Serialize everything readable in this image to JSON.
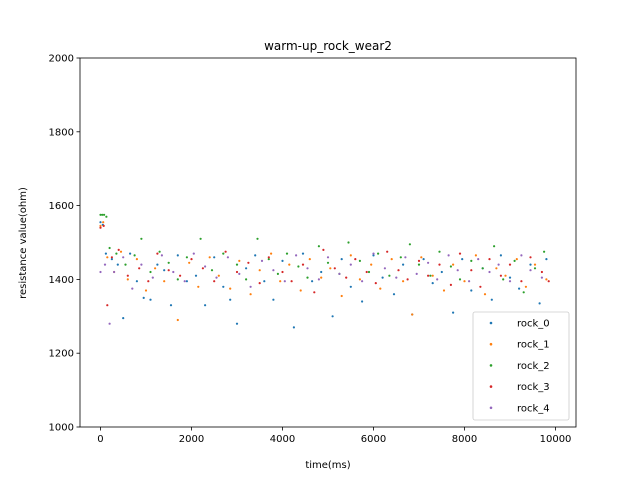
{
  "chart_data": {
    "type": "scatter",
    "title": "warm-up_rock_wear2",
    "xlabel": "time(ms)",
    "ylabel": "resistance value(ohm)",
    "xlim": [
      -450,
      10450
    ],
    "ylim": [
      1000,
      2000
    ],
    "xticks": [
      0,
      2000,
      4000,
      6000,
      8000,
      10000
    ],
    "yticks": [
      1000,
      1200,
      1400,
      1600,
      1800,
      2000
    ],
    "legend_position": "lower-right",
    "grid": false,
    "series": [
      {
        "name": "rock_0",
        "color": "#1f77b4",
        "points": [
          [
            0,
            1555
          ],
          [
            50,
            1548
          ],
          [
            120,
            1470
          ],
          [
            250,
            1455
          ],
          [
            380,
            1440
          ],
          [
            500,
            1295
          ],
          [
            650,
            1470
          ],
          [
            800,
            1395
          ],
          [
            950,
            1350
          ],
          [
            1100,
            1345
          ],
          [
            1250,
            1440
          ],
          [
            1400,
            1425
          ],
          [
            1550,
            1330
          ],
          [
            1700,
            1465
          ],
          [
            1900,
            1395
          ],
          [
            2100,
            1410
          ],
          [
            2300,
            1330
          ],
          [
            2500,
            1460
          ],
          [
            2700,
            1380
          ],
          [
            2850,
            1345
          ],
          [
            3000,
            1280
          ],
          [
            3200,
            1430
          ],
          [
            3400,
            1465
          ],
          [
            3600,
            1395
          ],
          [
            3800,
            1345
          ],
          [
            4000,
            1450
          ],
          [
            4250,
            1270
          ],
          [
            4450,
            1470
          ],
          [
            4650,
            1395
          ],
          [
            4850,
            1420
          ],
          [
            5100,
            1300
          ],
          [
            5300,
            1455
          ],
          [
            5500,
            1380
          ],
          [
            5750,
            1340
          ],
          [
            6000,
            1465
          ],
          [
            6200,
            1405
          ],
          [
            6450,
            1360
          ],
          [
            6650,
            1440
          ],
          [
            6850,
            1305
          ],
          [
            7100,
            1455
          ],
          [
            7300,
            1390
          ],
          [
            7500,
            1420
          ],
          [
            7750,
            1310
          ],
          [
            7950,
            1455
          ],
          [
            8150,
            1370
          ],
          [
            8400,
            1430
          ],
          [
            8600,
            1345
          ],
          [
            8800,
            1465
          ],
          [
            9000,
            1405
          ],
          [
            9200,
            1375
          ],
          [
            9450,
            1440
          ],
          [
            9650,
            1335
          ],
          [
            9800,
            1455
          ]
        ]
      },
      {
        "name": "rock_1",
        "color": "#ff7f0e",
        "points": [
          [
            0,
            1545
          ],
          [
            60,
            1555
          ],
          [
            150,
            1460
          ],
          [
            300,
            1420
          ],
          [
            450,
            1475
          ],
          [
            600,
            1400
          ],
          [
            800,
            1455
          ],
          [
            1000,
            1370
          ],
          [
            1200,
            1430
          ],
          [
            1400,
            1395
          ],
          [
            1700,
            1290
          ],
          [
            1950,
            1445
          ],
          [
            2150,
            1380
          ],
          [
            2400,
            1460
          ],
          [
            2600,
            1410
          ],
          [
            2850,
            1375
          ],
          [
            3050,
            1450
          ],
          [
            3300,
            1360
          ],
          [
            3500,
            1425
          ],
          [
            3750,
            1470
          ],
          [
            3950,
            1395
          ],
          [
            4150,
            1440
          ],
          [
            4400,
            1370
          ],
          [
            4600,
            1455
          ],
          [
            4850,
            1405
          ],
          [
            5050,
            1430
          ],
          [
            5300,
            1355
          ],
          [
            5500,
            1465
          ],
          [
            5700,
            1400
          ],
          [
            5950,
            1440
          ],
          [
            6150,
            1375
          ],
          [
            6400,
            1455
          ],
          [
            6650,
            1395
          ],
          [
            6850,
            1305
          ],
          [
            7050,
            1460
          ],
          [
            7300,
            1410
          ],
          [
            7550,
            1370
          ],
          [
            7750,
            1440
          ],
          [
            8000,
            1395
          ],
          [
            8250,
            1465
          ],
          [
            8450,
            1360
          ],
          [
            8700,
            1430
          ],
          [
            8900,
            1410
          ],
          [
            9150,
            1455
          ],
          [
            9350,
            1380
          ],
          [
            9550,
            1440
          ],
          [
            9800,
            1400
          ]
        ]
      },
      {
        "name": "rock_2",
        "color": "#2ca02c",
        "points": [
          [
            0,
            1575
          ],
          [
            40,
            1575
          ],
          [
            80,
            1575
          ],
          [
            130,
            1570
          ],
          [
            200,
            1485
          ],
          [
            350,
            1470
          ],
          [
            550,
            1440
          ],
          [
            750,
            1465
          ],
          [
            900,
            1510
          ],
          [
            1100,
            1420
          ],
          [
            1300,
            1475
          ],
          [
            1500,
            1445
          ],
          [
            1700,
            1400
          ],
          [
            1900,
            1460
          ],
          [
            2200,
            1510
          ],
          [
            2450,
            1425
          ],
          [
            2700,
            1470
          ],
          [
            3000,
            1440
          ],
          [
            3200,
            1400
          ],
          [
            3450,
            1510
          ],
          [
            3700,
            1455
          ],
          [
            3900,
            1415
          ],
          [
            4100,
            1470
          ],
          [
            4350,
            1435
          ],
          [
            4550,
            1405
          ],
          [
            4800,
            1490
          ],
          [
            5000,
            1445
          ],
          [
            5250,
            1415
          ],
          [
            5450,
            1500
          ],
          [
            5700,
            1450
          ],
          [
            5900,
            1420
          ],
          [
            6100,
            1470
          ],
          [
            6350,
            1410
          ],
          [
            6600,
            1460
          ],
          [
            6800,
            1495
          ],
          [
            7000,
            1440
          ],
          [
            7250,
            1410
          ],
          [
            7450,
            1475
          ],
          [
            7700,
            1435
          ],
          [
            7900,
            1400
          ],
          [
            8150,
            1450
          ],
          [
            8400,
            1430
          ],
          [
            8650,
            1490
          ],
          [
            8850,
            1400
          ],
          [
            9100,
            1450
          ],
          [
            9300,
            1365
          ],
          [
            9550,
            1430
          ],
          [
            9750,
            1475
          ]
        ]
      },
      {
        "name": "rock_3",
        "color": "#d62728",
        "points": [
          [
            0,
            1540
          ],
          [
            70,
            1545
          ],
          [
            150,
            1330
          ],
          [
            250,
            1460
          ],
          [
            400,
            1480
          ],
          [
            600,
            1410
          ],
          [
            850,
            1430
          ],
          [
            1050,
            1395
          ],
          [
            1250,
            1470
          ],
          [
            1500,
            1425
          ],
          [
            1750,
            1410
          ],
          [
            2000,
            1455
          ],
          [
            2250,
            1430
          ],
          [
            2500,
            1395
          ],
          [
            2750,
            1475
          ],
          [
            3000,
            1420
          ],
          [
            3250,
            1445
          ],
          [
            3500,
            1390
          ],
          [
            3700,
            1460
          ],
          [
            4000,
            1420
          ],
          [
            4200,
            1395
          ],
          [
            4450,
            1440
          ],
          [
            4700,
            1365
          ],
          [
            4900,
            1480
          ],
          [
            5150,
            1430
          ],
          [
            5400,
            1405
          ],
          [
            5600,
            1455
          ],
          [
            5850,
            1420
          ],
          [
            6050,
            1390
          ],
          [
            6300,
            1475
          ],
          [
            6550,
            1425
          ],
          [
            6750,
            1400
          ],
          [
            7000,
            1450
          ],
          [
            7200,
            1410
          ],
          [
            7450,
            1440
          ],
          [
            7700,
            1385
          ],
          [
            7900,
            1470
          ],
          [
            8150,
            1425
          ],
          [
            8350,
            1380
          ],
          [
            8550,
            1455
          ],
          [
            8800,
            1410
          ],
          [
            9000,
            1440
          ],
          [
            9250,
            1395
          ],
          [
            9450,
            1460
          ],
          [
            9700,
            1420
          ],
          [
            9850,
            1395
          ]
        ]
      },
      {
        "name": "rock_4",
        "color": "#9467bd",
        "points": [
          [
            0,
            1420
          ],
          [
            100,
            1440
          ],
          [
            200,
            1280
          ],
          [
            300,
            1420
          ],
          [
            500,
            1460
          ],
          [
            700,
            1375
          ],
          [
            900,
            1440
          ],
          [
            1150,
            1405
          ],
          [
            1350,
            1465
          ],
          [
            1600,
            1420
          ],
          [
            1850,
            1395
          ],
          [
            2050,
            1470
          ],
          [
            2300,
            1435
          ],
          [
            2550,
            1405
          ],
          [
            2800,
            1460
          ],
          [
            3050,
            1415
          ],
          [
            3300,
            1380
          ],
          [
            3550,
            1450
          ],
          [
            3800,
            1425
          ],
          [
            4050,
            1395
          ],
          [
            4300,
            1465
          ],
          [
            4550,
            1430
          ],
          [
            4800,
            1400
          ],
          [
            5000,
            1460
          ],
          [
            5250,
            1415
          ],
          [
            5500,
            1440
          ],
          [
            5750,
            1395
          ],
          [
            6000,
            1470
          ],
          [
            6250,
            1430
          ],
          [
            6500,
            1405
          ],
          [
            6700,
            1460
          ],
          [
            6950,
            1415
          ],
          [
            7200,
            1445
          ],
          [
            7400,
            1400
          ],
          [
            7650,
            1465
          ],
          [
            7850,
            1425
          ],
          [
            8100,
            1395
          ],
          [
            8300,
            1455
          ],
          [
            8550,
            1420
          ],
          [
            8750,
            1440
          ],
          [
            9000,
            1395
          ],
          [
            9250,
            1465
          ],
          [
            9450,
            1425
          ],
          [
            9700,
            1405
          ]
        ]
      }
    ]
  }
}
